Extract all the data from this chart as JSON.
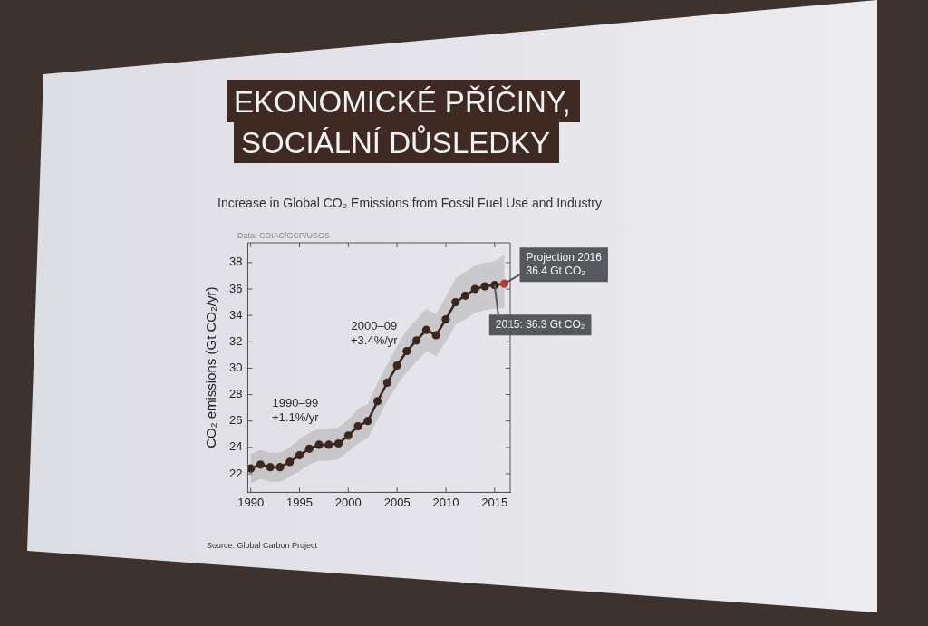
{
  "chart_data": {
    "type": "line",
    "title": "EKONOMICKÉ PŘÍČINY,\nSOCIÁLNÍ DŮSLEDKY",
    "subtitle": "Increase in Global CO₂ Emissions from Fossil Fuel Use and Industry",
    "ylabel": "CO₂ emissions (Gt CO₂/yr)",
    "x": [
      1990,
      1991,
      1992,
      1993,
      1994,
      1995,
      1996,
      1997,
      1998,
      1999,
      2000,
      2001,
      2002,
      2003,
      2004,
      2005,
      2006,
      2007,
      2008,
      2009,
      2010,
      2011,
      2012,
      2013,
      2014,
      2015,
      2016
    ],
    "series": [
      {
        "color": "#3b2620",
        "colors": [
          "#3b2620",
          "#3b2620",
          "#3b2620",
          "#3b2620",
          "#3b2620",
          "#3b2620",
          "#3b2620",
          "#3b2620",
          "#3b2620",
          "#3b2620",
          "#3b2620",
          "#3b2620",
          "#3b2620",
          "#3b2620",
          "#3b2620",
          "#3b2620",
          "#3b2620",
          "#3b2620",
          "#3b2620",
          "#3b2620",
          "#3b2620",
          "#3b2620",
          "#3b2620",
          "#3b2620",
          "#3b2620",
          "#3b2620",
          "#c0392b"
        ],
        "values": [
          22.4,
          22.7,
          22.5,
          22.5,
          22.9,
          23.4,
          23.9,
          24.2,
          24.2,
          24.3,
          24.9,
          25.6,
          26.0,
          27.5,
          28.9,
          30.2,
          31.3,
          32.1,
          32.9,
          32.5,
          33.7,
          35.0,
          35.5,
          36.0,
          36.2,
          36.3,
          36.4
        ],
        "lower": [
          21.3,
          21.6,
          21.4,
          21.4,
          21.8,
          22.2,
          22.7,
          23.0,
          23.0,
          23.1,
          23.7,
          24.3,
          24.7,
          26.1,
          27.5,
          28.7,
          29.7,
          30.5,
          31.3,
          30.9,
          32.0,
          33.3,
          33.7,
          34.2,
          34.4,
          34.5,
          34.6
        ],
        "upper": [
          23.5,
          23.8,
          23.6,
          23.6,
          24.0,
          24.6,
          25.1,
          25.4,
          25.4,
          25.5,
          26.1,
          26.9,
          27.3,
          28.9,
          30.3,
          31.7,
          32.9,
          33.7,
          34.5,
          34.1,
          35.4,
          36.8,
          37.3,
          37.8,
          38.0,
          38.1,
          38.6
        ]
      }
    ],
    "xlim": [
      1989.7,
      2016.6
    ],
    "xticks": [
      1990,
      1995,
      2000,
      2005,
      2010,
      2015
    ],
    "ylim": [
      20.6,
      39.5
    ],
    "yticks": [
      22,
      24,
      26,
      28,
      30,
      32,
      34,
      36,
      38
    ],
    "marker": "circle",
    "line_style": "solid",
    "annotations": [
      "Data: CDIAC/GCP/USGS",
      "1990–99\n+1.1%/yr",
      "2000–09\n+3.4%/yr",
      {
        "text": "Projection 2016\n36.4 Gt CO₂",
        "x": 2016,
        "y": 36.4
      },
      {
        "text": "2015: 36.3 Gt CO₂",
        "x": 2015,
        "y": 36.3
      },
      "Source: Global Carbon Project"
    ]
  }
}
